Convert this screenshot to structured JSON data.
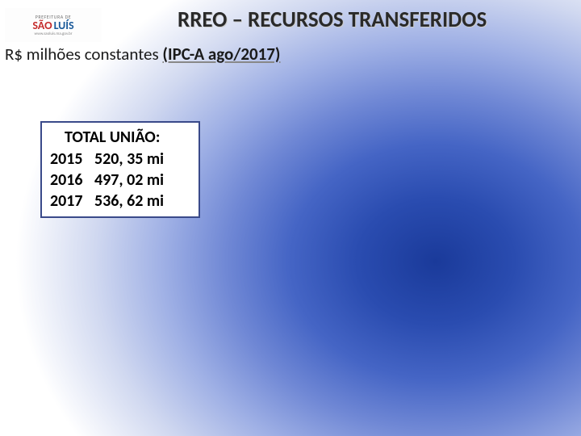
{
  "logo": {
    "top": "PREFEITURA DE",
    "sao": "SÃO",
    "luis": "LUÍS",
    "url": "www.saoluis.ma.gov.br"
  },
  "title": "RREO – RECURSOS TRANSFERIDOS",
  "subtitle_prefix": "R$ milhões constantes ",
  "subtitle_under": "(IPC-A ago/2017)",
  "box": {
    "heading": "TOTAL UNIÃO:",
    "rows": [
      {
        "year": "2015",
        "value": "520, 35 mi"
      },
      {
        "year": "2016",
        "value": "497, 02 mi"
      },
      {
        "year": "2017",
        "value": "536, 62 mi"
      }
    ]
  },
  "colors": {
    "box_border": "#3a4a8a",
    "title_color": "#2a2a2a",
    "gradient_center": "#1a3a9a",
    "gradient_outer": "#ffffff"
  }
}
